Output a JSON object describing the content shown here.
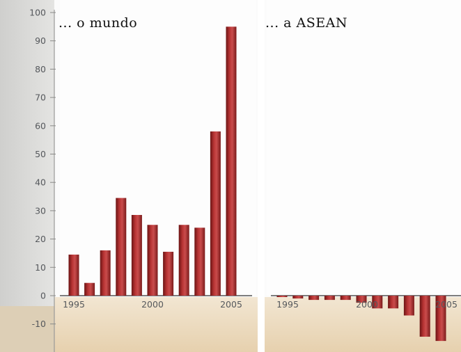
{
  "chart_data": [
    {
      "type": "bar",
      "title": "... o mundo",
      "x": [
        1995,
        1996,
        1997,
        1998,
        1999,
        2000,
        2001,
        2002,
        2003,
        2004,
        2005
      ],
      "values": [
        14.5,
        4.5,
        16,
        34.5,
        28.5,
        25,
        15.5,
        25,
        24,
        58,
        95
      ],
      "xticks": [
        "1995",
        "2000",
        "2005"
      ],
      "ylim": [
        -15,
        100
      ],
      "yticks": [
        "100",
        "90",
        "80",
        "70",
        "60",
        "50",
        "40",
        "30",
        "20",
        "10",
        "0",
        "-10"
      ],
      "grid": false
    },
    {
      "type": "bar",
      "title": "... a ASEAN",
      "x": [
        1995,
        1996,
        1997,
        1998,
        1999,
        2000,
        2001,
        2002,
        2003,
        2004,
        2005
      ],
      "values": [
        -0.5,
        -1,
        -1.5,
        -1.5,
        -1.5,
        -2.5,
        -4.5,
        -4.5,
        -7,
        -14.5,
        -16
      ],
      "xticks": [
        "1995",
        "2000",
        "2005"
      ],
      "ylim": [
        -15,
        100
      ],
      "grid": false
    }
  ],
  "colors": {
    "bar": "#a82a2a",
    "bar_highlight": "#d05a5a",
    "bar_shadow": "#6b1414",
    "negative_band": "#ecdcc2",
    "axis_strip": "#d6d6d4"
  }
}
